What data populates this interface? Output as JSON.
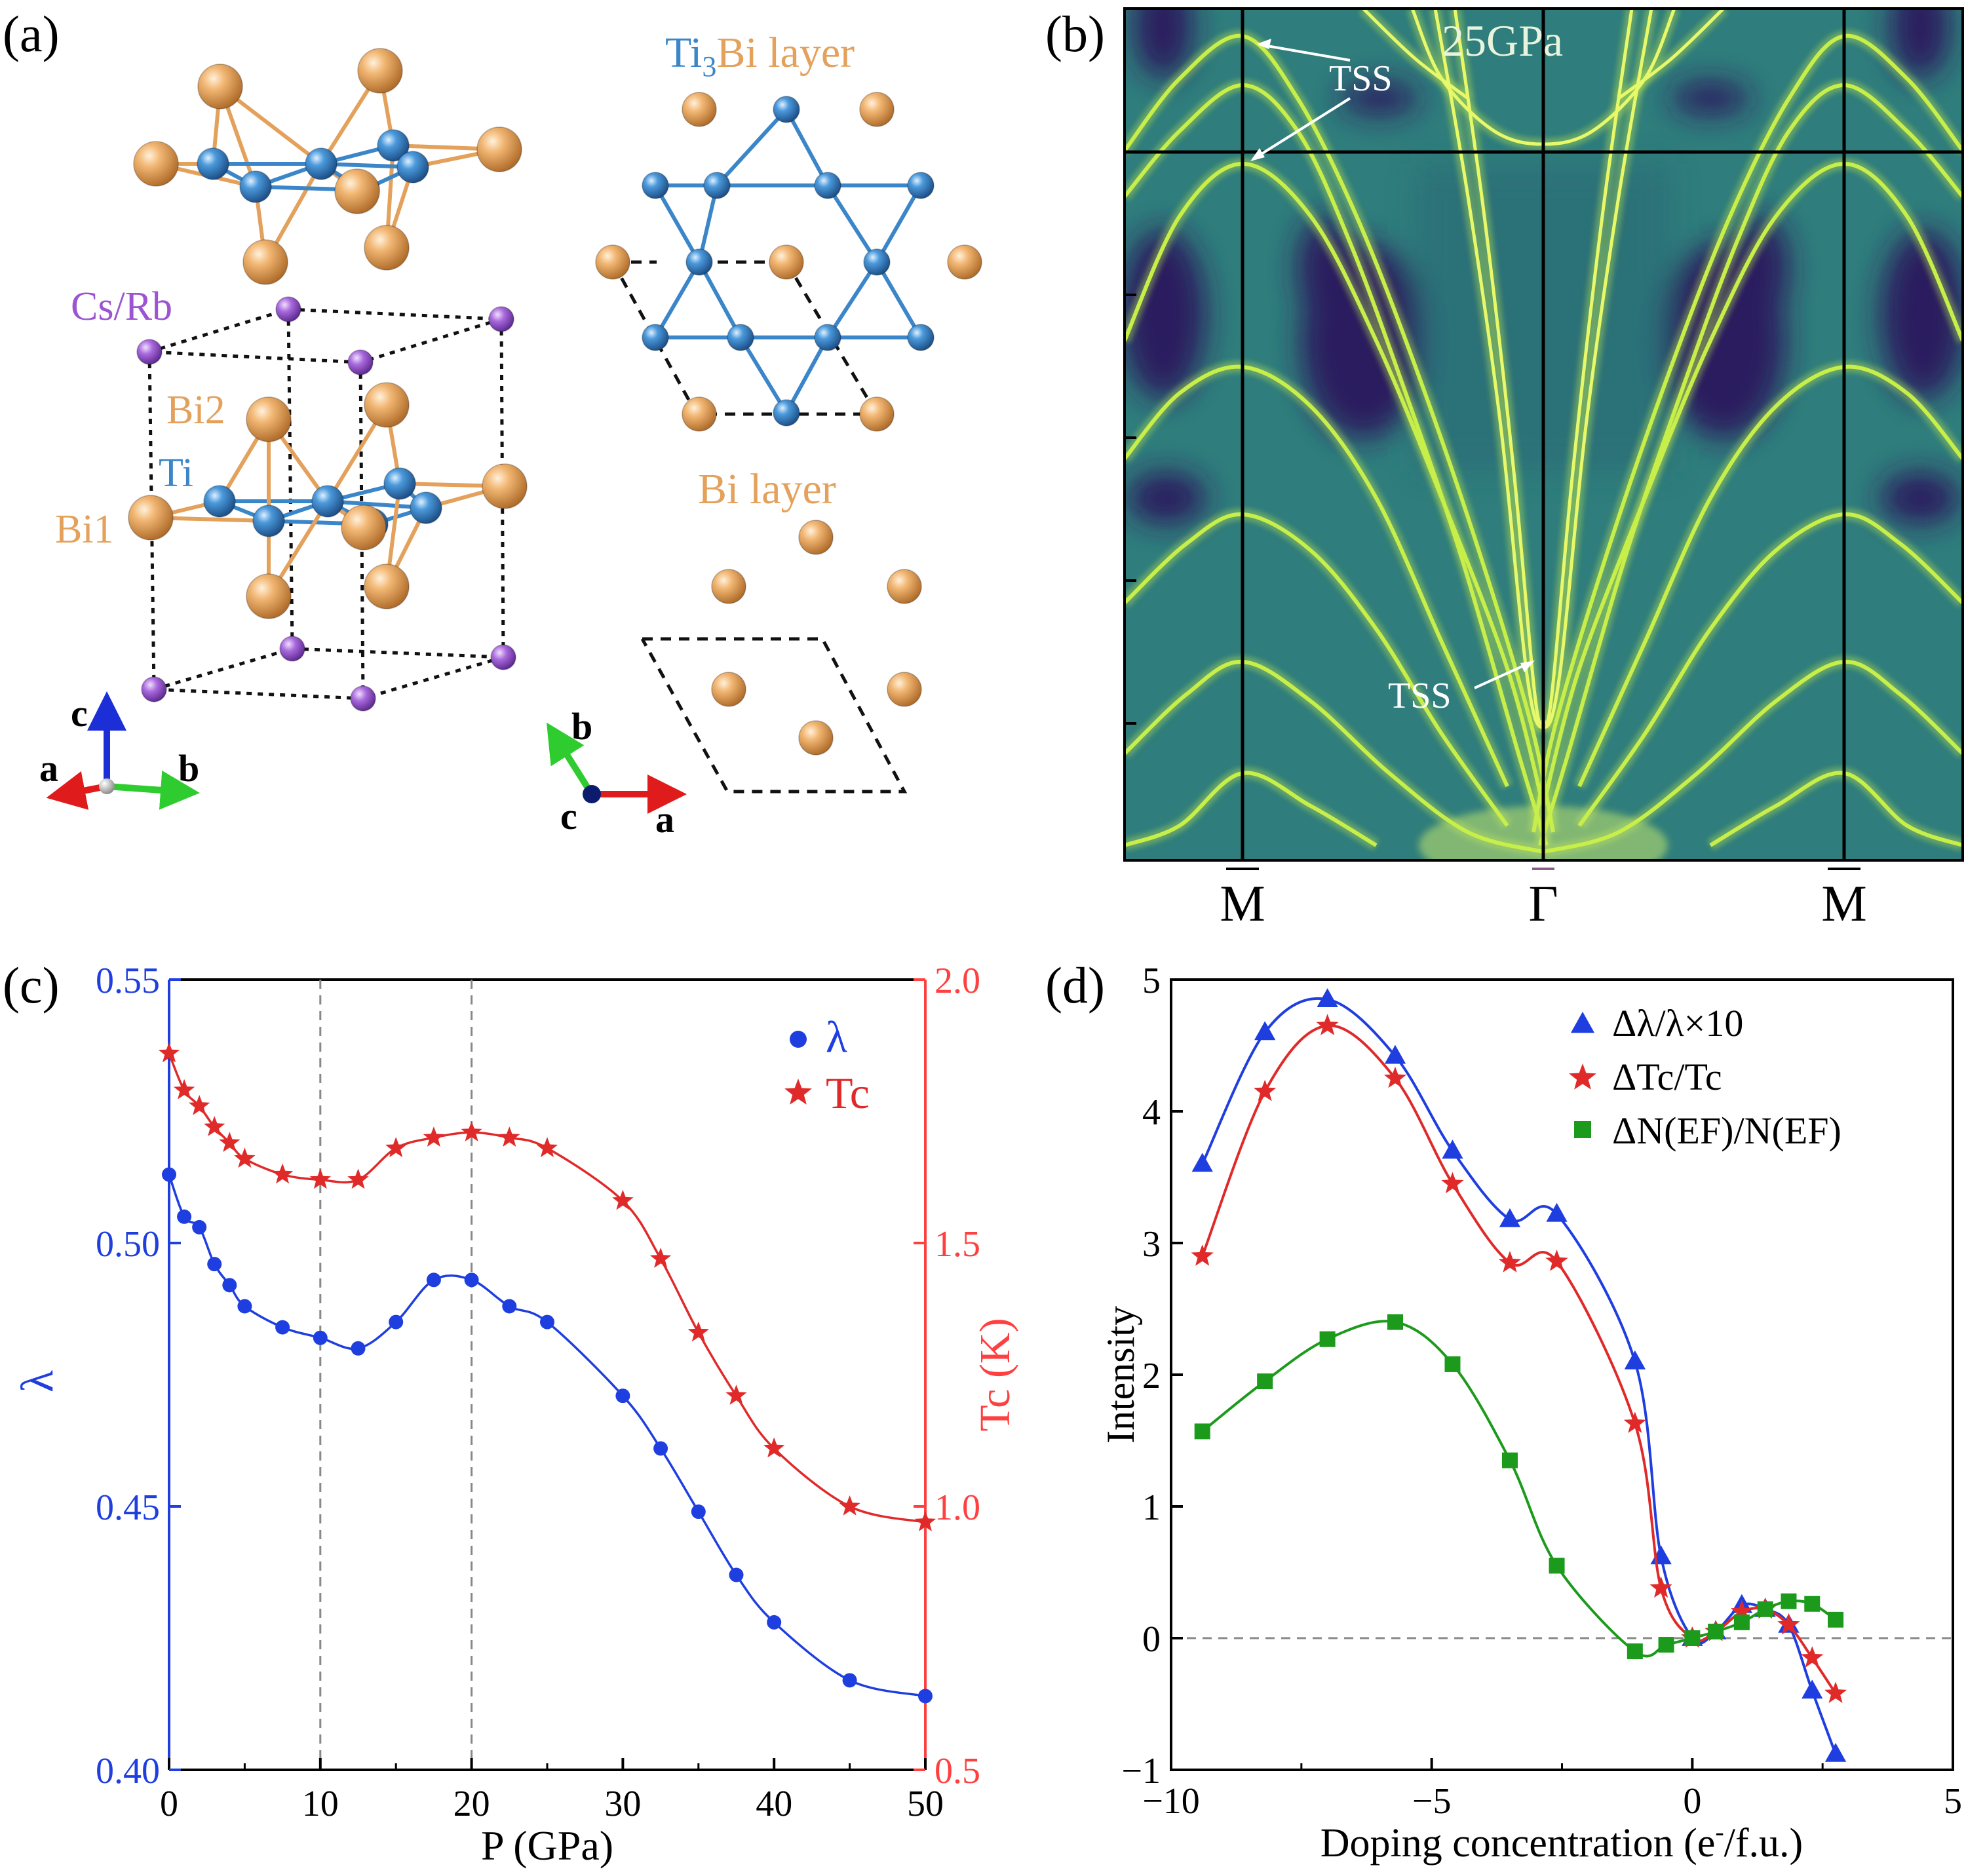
{
  "panel_labels": {
    "a": "(a)",
    "b": "(b)",
    "c": "(c)",
    "d": "(d)"
  },
  "colors": {
    "bi": "#e3a15c",
    "ti": "#3b86c9",
    "cs": "#9b55d2",
    "blue": "#1f3ee0",
    "red": "#e02a2a",
    "green": "#1c9a1c",
    "axis_red": "#ff4040",
    "bands_bg": "#2f7d7c"
  },
  "panel_a": {
    "labels": {
      "ti3bi_layer_prefix": "Ti",
      "ti3bi_layer_sub": "3",
      "ti3bi_layer_suffix": "Bi layer",
      "bi_layer": "Bi layer",
      "csrb": "Cs/Rb",
      "bi2": "Bi2",
      "ti": "Ti",
      "bi1": "Bi1"
    },
    "axes_left": {
      "c": "c",
      "a": "a",
      "b": "b"
    },
    "axes_right": {
      "b": "b",
      "c": "c",
      "a": "a"
    }
  },
  "panel_b": {
    "pressure": "25GPa",
    "tss": [
      "TSS",
      "TSS"
    ],
    "kpoints": [
      "M",
      "Γ",
      "M"
    ]
  },
  "chart_data": [
    {
      "type": "line",
      "panel": "c",
      "xlabel": "P (GPa)",
      "ylabel_left": "λ",
      "ylabel_right": "Tc (K)",
      "xlim": [
        0,
        50
      ],
      "ylim_left": [
        0.4,
        0.55
      ],
      "ylim_right": [
        0.5,
        2.0
      ],
      "xticks": [
        "0",
        "10",
        "20",
        "30",
        "40",
        "50"
      ],
      "yticks_left": [
        "0.40",
        "0.45",
        "0.50",
        "0.55"
      ],
      "yticks_right": [
        "0.5",
        "1.0",
        "1.5",
        "2.0"
      ],
      "vlines": [
        10,
        20
      ],
      "legend": [
        "λ",
        "Tc"
      ],
      "series": [
        {
          "name": "λ",
          "axis": "left",
          "x": [
            0,
            1,
            2,
            3,
            4,
            5,
            7.5,
            10,
            12.5,
            15,
            17.5,
            20,
            22.5,
            25,
            30,
            32.5,
            35,
            37.5,
            40,
            45,
            50
          ],
          "y": [
            0.513,
            0.505,
            0.503,
            0.496,
            0.492,
            0.488,
            0.484,
            0.482,
            0.48,
            0.485,
            0.493,
            0.493,
            0.488,
            0.485,
            0.471,
            0.461,
            0.449,
            0.437,
            0.428,
            0.417,
            0.414
          ]
        },
        {
          "name": "Tc",
          "axis": "right",
          "x": [
            0,
            1,
            2,
            3,
            4,
            5,
            7.5,
            10,
            12.5,
            15,
            17.5,
            20,
            22.5,
            25,
            30,
            32.5,
            35,
            37.5,
            40,
            45,
            50
          ],
          "y": [
            1.86,
            1.79,
            1.76,
            1.72,
            1.69,
            1.66,
            1.63,
            1.62,
            1.62,
            1.68,
            1.7,
            1.71,
            1.7,
            1.68,
            1.58,
            1.47,
            1.33,
            1.21,
            1.11,
            1.0,
            0.97
          ]
        }
      ]
    },
    {
      "type": "line",
      "panel": "d",
      "xlabel_prefix": "Doping concentration (e",
      "xlabel_sup": "-",
      "xlabel_suffix": "/f.u.)",
      "ylabel": "Intensity",
      "xlim": [
        -10,
        5
      ],
      "ylim": [
        -1,
        5
      ],
      "xticks": [
        "−10",
        "−5",
        "0",
        "5"
      ],
      "yticks": [
        "−1",
        "0",
        "1",
        "2",
        "3",
        "4",
        "5"
      ],
      "hline": 0,
      "legend": [
        "Δλ/λ×10",
        "ΔTc/Tc",
        "ΔN(EF)/N(EF)"
      ],
      "series": [
        {
          "name": "Δλ/λ×10",
          "x": [
            -9.4,
            -8.2,
            -7,
            -5.7,
            -4.6,
            -3.5,
            -2.6,
            -1.1,
            -0.6,
            0,
            0.45,
            0.95,
            1.4,
            1.85,
            2.3,
            2.75
          ],
          "y": [
            3.6,
            4.6,
            4.85,
            4.42,
            3.7,
            3.18,
            3.22,
            2.1,
            0.62,
            0.0,
            0.05,
            0.25,
            0.22,
            0.1,
            -0.4,
            -0.88
          ]
        },
        {
          "name": "ΔTc/Tc",
          "x": [
            -9.4,
            -8.2,
            -7,
            -5.7,
            -4.6,
            -3.5,
            -2.6,
            -1.1,
            -0.6,
            0,
            0.45,
            0.95,
            1.4,
            1.85,
            2.3,
            2.75
          ],
          "y": [
            2.9,
            4.15,
            4.65,
            4.25,
            3.45,
            2.85,
            2.86,
            1.63,
            0.38,
            0.0,
            0.05,
            0.2,
            0.22,
            0.1,
            -0.15,
            -0.42
          ]
        },
        {
          "name": "ΔN(EF)/N(EF)",
          "x": [
            -9.4,
            -8.2,
            -7,
            -5.7,
            -4.6,
            -3.5,
            -2.6,
            -1.1,
            -0.5,
            0,
            0.45,
            0.95,
            1.4,
            1.85,
            2.3,
            2.75
          ],
          "y": [
            1.57,
            1.95,
            2.27,
            2.4,
            2.08,
            1.35,
            0.55,
            -0.1,
            -0.05,
            0.0,
            0.05,
            0.12,
            0.22,
            0.28,
            0.26,
            0.14
          ]
        }
      ]
    }
  ]
}
